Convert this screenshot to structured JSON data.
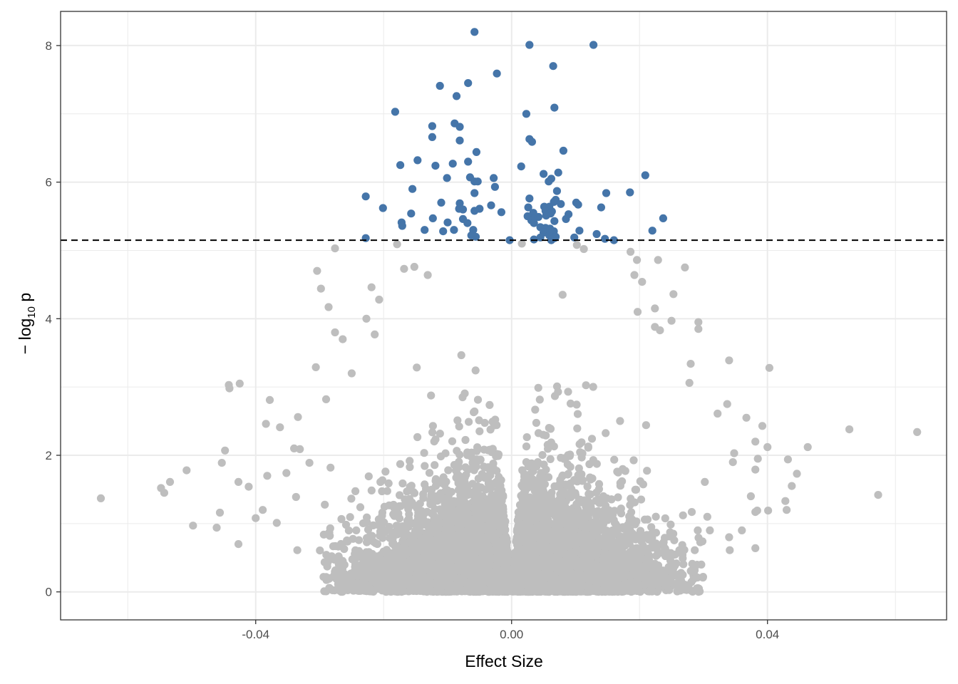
{
  "chart_data": {
    "type": "scatter",
    "title": "",
    "xlabel": "Effect Size",
    "ylabel_main": "− log",
    "ylabel_sub": "10",
    "ylabel_tail": " p",
    "xlim": [
      -0.0705,
      0.068
    ],
    "ylim": [
      -0.41,
      8.5
    ],
    "x_ticks": [
      -0.04,
      0.0,
      0.04
    ],
    "x_tick_labels": [
      "-0.04",
      "0.00",
      "0.04"
    ],
    "y_ticks": [
      0,
      2,
      4,
      6,
      8
    ],
    "y_tick_labels": [
      "0",
      "2",
      "4",
      "6",
      "8"
    ],
    "grid": true,
    "legend": "none",
    "threshold": 5.15,
    "colors": {
      "significant": "#4575a9",
      "nonsignificant": "#bebebe",
      "threshold_line": "#000000",
      "grid": "#ebebeb",
      "panel_border": "#333333"
    },
    "significant_points": [
      [
        -0.0058,
        8.2
      ],
      [
        0.0028,
        8.01
      ],
      [
        0.0128,
        8.01
      ],
      [
        0.0065,
        7.7
      ],
      [
        -0.0023,
        7.59
      ],
      [
        -0.0068,
        7.45
      ],
      [
        -0.0112,
        7.41
      ],
      [
        -0.0086,
        7.26
      ],
      [
        0.0067,
        7.09
      ],
      [
        -0.0182,
        7.03
      ],
      [
        0.0023,
        7.0
      ],
      [
        -0.0089,
        6.86
      ],
      [
        -0.0124,
        6.82
      ],
      [
        -0.0081,
        6.81
      ],
      [
        -0.0124,
        6.66
      ],
      [
        0.0028,
        6.63
      ],
      [
        0.0032,
        6.59
      ],
      [
        -0.0081,
        6.61
      ],
      [
        0.0081,
        6.46
      ],
      [
        -0.0055,
        6.44
      ],
      [
        -0.0147,
        6.32
      ],
      [
        -0.0068,
        6.3
      ],
      [
        -0.0092,
        6.27
      ],
      [
        -0.0174,
        6.25
      ],
      [
        -0.0119,
        6.24
      ],
      [
        0.0015,
        6.23
      ],
      [
        0.0073,
        6.14
      ],
      [
        0.005,
        6.12
      ],
      [
        0.0209,
        6.1
      ],
      [
        -0.0101,
        6.06
      ],
      [
        -0.0065,
        6.07
      ],
      [
        0.0062,
        6.05
      ],
      [
        -0.0028,
        6.06
      ],
      [
        0.0058,
        6.01
      ],
      [
        -0.0058,
        6.01
      ],
      [
        -0.0053,
        6.01
      ],
      [
        -0.0026,
        5.93
      ],
      [
        -0.0155,
        5.9
      ],
      [
        0.0071,
        5.87
      ],
      [
        0.0185,
        5.85
      ],
      [
        0.0148,
        5.84
      ],
      [
        -0.0058,
        5.84
      ],
      [
        -0.0228,
        5.79
      ],
      [
        0.0028,
        5.76
      ],
      [
        0.0069,
        5.74
      ],
      [
        0.0066,
        5.71
      ],
      [
        -0.011,
        5.7
      ],
      [
        0.0101,
        5.7
      ],
      [
        -0.0081,
        5.69
      ],
      [
        0.0077,
        5.68
      ],
      [
        0.0104,
        5.67
      ],
      [
        0.0051,
        5.64
      ],
      [
        -0.0032,
        5.66
      ],
      [
        0.0059,
        5.64
      ],
      [
        0.0026,
        5.63
      ],
      [
        0.014,
        5.63
      ],
      [
        -0.0201,
        5.62
      ],
      [
        -0.0082,
        5.61
      ],
      [
        -0.005,
        5.61
      ],
      [
        -0.0058,
        5.58
      ],
      [
        0.0053,
        5.58
      ],
      [
        -0.0076,
        5.6
      ],
      [
        0.0063,
        5.57
      ],
      [
        -0.0016,
        5.56
      ],
      [
        0.0034,
        5.55
      ],
      [
        0.0061,
        5.54
      ],
      [
        -0.0157,
        5.54
      ],
      [
        0.0089,
        5.53
      ],
      [
        0.0054,
        5.51
      ],
      [
        0.0025,
        5.5
      ],
      [
        0.0042,
        5.49
      ],
      [
        -0.0123,
        5.47
      ],
      [
        -0.0076,
        5.46
      ],
      [
        0.0237,
        5.47
      ],
      [
        0.0085,
        5.46
      ],
      [
        0.0034,
        5.46
      ],
      [
        0.0031,
        5.44
      ],
      [
        0.0067,
        5.43
      ],
      [
        -0.01,
        5.41
      ],
      [
        0.0035,
        5.4
      ],
      [
        -0.0172,
        5.41
      ],
      [
        -0.0069,
        5.4
      ],
      [
        -0.0171,
        5.36
      ],
      [
        0.0045,
        5.34
      ],
      [
        0.0053,
        5.33
      ],
      [
        0.006,
        5.32
      ],
      [
        -0.006,
        5.3
      ],
      [
        -0.0136,
        5.3
      ],
      [
        -0.009,
        5.3
      ],
      [
        -0.0107,
        5.28
      ],
      [
        0.0066,
        5.28
      ],
      [
        0.022,
        5.29
      ],
      [
        0.0106,
        5.29
      ],
      [
        0.0052,
        5.27
      ],
      [
        0.005,
        5.26
      ],
      [
        0.0133,
        5.24
      ],
      [
        0.0059,
        5.22
      ],
      [
        -0.0063,
        5.22
      ],
      [
        0.0069,
        5.2
      ],
      [
        0.0098,
        5.19
      ],
      [
        -0.0228,
        5.18
      ],
      [
        -0.0056,
        5.2
      ],
      [
        0.0045,
        5.19
      ],
      [
        0.0067,
        5.18
      ],
      [
        0.0146,
        5.17
      ],
      [
        0.0035,
        5.16
      ],
      [
        0.016,
        5.15
      ],
      [
        0.0062,
        5.15
      ],
      [
        -0.0003,
        5.15
      ],
      [
        0.0064,
        5.17
      ]
    ],
    "nonsignificant_outliers": [
      [
        -0.0642,
        1.37
      ],
      [
        -0.0548,
        1.52
      ],
      [
        -0.0543,
        1.45
      ],
      [
        -0.0534,
        1.61
      ],
      [
        -0.0508,
        1.78
      ],
      [
        -0.0498,
        0.97
      ],
      [
        -0.0461,
        0.94
      ],
      [
        -0.0456,
        1.16
      ],
      [
        -0.0453,
        1.89
      ],
      [
        -0.0448,
        2.07
      ],
      [
        -0.0442,
        3.03
      ],
      [
        -0.0441,
        2.98
      ],
      [
        -0.0427,
        0.7
      ],
      [
        -0.0427,
        1.61
      ],
      [
        -0.0425,
        3.05
      ],
      [
        -0.0411,
        1.54
      ],
      [
        -0.04,
        1.08
      ],
      [
        -0.0389,
        1.2
      ],
      [
        -0.0384,
        2.46
      ],
      [
        -0.0382,
        1.7
      ],
      [
        -0.0378,
        2.81
      ],
      [
        -0.0367,
        1.01
      ],
      [
        -0.0362,
        2.41
      ],
      [
        -0.0352,
        1.74
      ],
      [
        -0.034,
        2.1
      ],
      [
        -0.0337,
        1.39
      ],
      [
        -0.0335,
        0.61
      ],
      [
        -0.0334,
        2.56
      ],
      [
        -0.0331,
        2.09
      ],
      [
        -0.0316,
        1.89
      ],
      [
        -0.0306,
        3.29
      ],
      [
        -0.0304,
        4.7
      ],
      [
        -0.0298,
        4.44
      ],
      [
        -0.0286,
        4.17
      ],
      [
        -0.029,
        2.82
      ],
      [
        -0.0283,
        1.82
      ],
      [
        -0.0276,
        3.8
      ],
      [
        -0.0264,
        3.7
      ],
      [
        -0.025,
        3.2
      ],
      [
        -0.0227,
        4.0
      ],
      [
        -0.0219,
        4.46
      ],
      [
        -0.0214,
        3.77
      ],
      [
        -0.0207,
        4.28
      ],
      [
        -0.0276,
        5.03
      ],
      [
        -0.0179,
        5.09
      ],
      [
        -0.0168,
        4.73
      ],
      [
        -0.0152,
        4.76
      ],
      [
        -0.0131,
        4.64
      ],
      [
        0.0016,
        5.1
      ],
      [
        0.0102,
        5.08
      ],
      [
        0.0113,
        5.02
      ],
      [
        0.0186,
        4.98
      ],
      [
        0.0196,
        4.86
      ],
      [
        0.0229,
        4.86
      ],
      [
        0.0192,
        4.64
      ],
      [
        0.0204,
        4.54
      ],
      [
        0.0197,
        4.1
      ],
      [
        0.0224,
        4.15
      ],
      [
        0.0224,
        3.88
      ],
      [
        0.0232,
        3.83
      ],
      [
        0.025,
        3.97
      ],
      [
        0.0253,
        4.36
      ],
      [
        0.0271,
        4.75
      ],
      [
        0.0292,
        3.95
      ],
      [
        0.0292,
        3.85
      ],
      [
        0.028,
        3.34
      ],
      [
        0.0278,
        3.06
      ],
      [
        0.0322,
        2.61
      ],
      [
        0.0337,
        2.75
      ],
      [
        0.034,
        3.39
      ],
      [
        0.0403,
        3.28
      ],
      [
        0.0367,
        2.55
      ],
      [
        0.0392,
        2.43
      ],
      [
        0.0381,
        2.2
      ],
      [
        0.04,
        2.12
      ],
      [
        0.0346,
        1.9
      ],
      [
        0.0348,
        2.03
      ],
      [
        0.0385,
        1.95
      ],
      [
        0.0381,
        1.79
      ],
      [
        0.0432,
        1.94
      ],
      [
        0.0446,
        1.73
      ],
      [
        0.0463,
        2.12
      ],
      [
        0.0528,
        2.38
      ],
      [
        0.0634,
        2.34
      ],
      [
        0.0573,
        1.42
      ],
      [
        0.0428,
        1.33
      ],
      [
        0.043,
        1.2
      ],
      [
        0.0401,
        1.19
      ],
      [
        0.0384,
        1.19
      ],
      [
        0.036,
        0.9
      ],
      [
        0.0341,
        0.61
      ],
      [
        0.031,
        0.9
      ],
      [
        0.0306,
        1.1
      ],
      [
        0.034,
        0.8
      ],
      [
        0.0381,
        0.64
      ],
      [
        0.0381,
        1.17
      ],
      [
        0.0438,
        1.55
      ],
      [
        0.0374,
        1.4
      ],
      [
        0.0302,
        1.61
      ]
    ],
    "bulk": {
      "count": 9000,
      "x_spread_at_top": 0.0065,
      "x_spread_at_bottom": 0.0205,
      "y_max": 4.7
    }
  }
}
